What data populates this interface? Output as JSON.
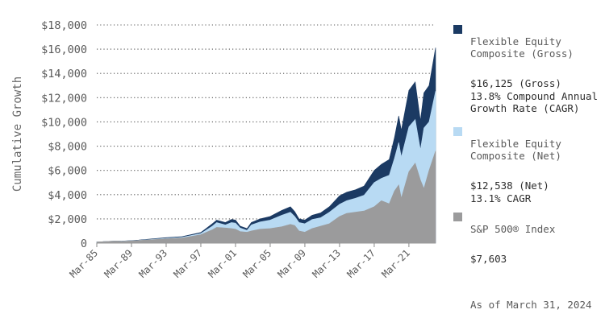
{
  "chart_data": {
    "type": "area",
    "ylabel": "Cumulative Growth",
    "ylim": [
      0,
      18000
    ],
    "y_ticks": [
      "$18,000",
      "$16,000",
      "$14,000",
      "$12,000",
      "$10,000",
      "$8,000",
      "$6,000",
      "$4,000",
      "$2,000",
      "0"
    ],
    "y_tick_values": [
      18000,
      16000,
      14000,
      12000,
      10000,
      8000,
      6000,
      4000,
      2000,
      0
    ],
    "x_ticks": [
      "Mar-85",
      "Mar-89",
      "Mar-93",
      "Mar-97",
      "Mar-01",
      "Mar-05",
      "Mar-09",
      "Mar-13",
      "Mar-17",
      "Mar-21"
    ],
    "x_tick_values": [
      1985.17,
      1989.17,
      1993.17,
      1997.17,
      2001.17,
      2005.17,
      2009.17,
      2013.17,
      2017.17,
      2021.17
    ],
    "xlim": [
      1985.17,
      2024.25
    ],
    "grid": "horizontal dotted",
    "legend_position": "right",
    "x": [
      1985.17,
      1987.5,
      1988,
      1990,
      1993.17,
      1995,
      1997.17,
      1998.5,
      1999,
      2000,
      2000.7,
      2001.17,
      2001.7,
      2002.5,
      2003,
      2004,
      2005.17,
      2006.5,
      2007.5,
      2008,
      2008.5,
      2009.17,
      2010,
      2011,
      2012,
      2013.17,
      2014,
      2015,
      2016,
      2017.17,
      2018,
      2018.9,
      2019.5,
      2020,
      2020.3,
      2021.17,
      2021.9,
      2022.5,
      2022.9,
      2023.5,
      2024.25
    ],
    "series": [
      {
        "name": "Flexible Equity Composite (Gross)",
        "color": "#1b3a63",
        "values": [
          100,
          180,
          160,
          250,
          450,
          540,
          880,
          1600,
          1900,
          1700,
          1950,
          1900,
          1400,
          1200,
          1700,
          2000,
          2200,
          2700,
          3000,
          2600,
          2000,
          1900,
          2300,
          2500,
          3000,
          3900,
          4200,
          4400,
          4700,
          6000,
          6500,
          6900,
          8700,
          10500,
          9300,
          12600,
          13300,
          10100,
          12400,
          13000,
          16125
        ]
      },
      {
        "name": "Flexible Equity Composite (Net)",
        "color": "#b8daf3",
        "values": [
          100,
          170,
          150,
          230,
          400,
          480,
          800,
          1400,
          1700,
          1500,
          1700,
          1650,
          1250,
          1050,
          1500,
          1750,
          1900,
          2300,
          2550,
          2200,
          1700,
          1600,
          1950,
          2100,
          2550,
          3200,
          3500,
          3700,
          3950,
          5000,
          5350,
          5600,
          7000,
          8300,
          7100,
          9600,
          10200,
          7700,
          9500,
          10000,
          12538
        ]
      },
      {
        "name": "S&P 500® Index",
        "color": "#9b9b9c",
        "values": [
          100,
          170,
          140,
          220,
          350,
          420,
          700,
          1100,
          1300,
          1250,
          1200,
          1150,
          950,
          900,
          1000,
          1150,
          1200,
          1350,
          1550,
          1450,
          1000,
          900,
          1200,
          1400,
          1600,
          2200,
          2450,
          2550,
          2650,
          3000,
          3500,
          3250,
          4300,
          4800,
          3700,
          5900,
          6600,
          5200,
          4500,
          6000,
          7603
        ]
      }
    ]
  },
  "legend": [
    {
      "name": "Flexible Equity\nComposite (Gross)",
      "value": "$16,125 (Gross)\n13.8% Compound Annual\nGrowth Rate (CAGR)",
      "color": "#1b3a63"
    },
    {
      "name": "Flexible Equity\nComposite (Net)",
      "value": "$12,538 (Net)\n13.1% CAGR",
      "color": "#b8daf3"
    },
    {
      "name": "S&P 500® Index",
      "value": "$7,603",
      "color": "#9b9b9c"
    }
  ],
  "as_of": "As of March 31, 2024"
}
